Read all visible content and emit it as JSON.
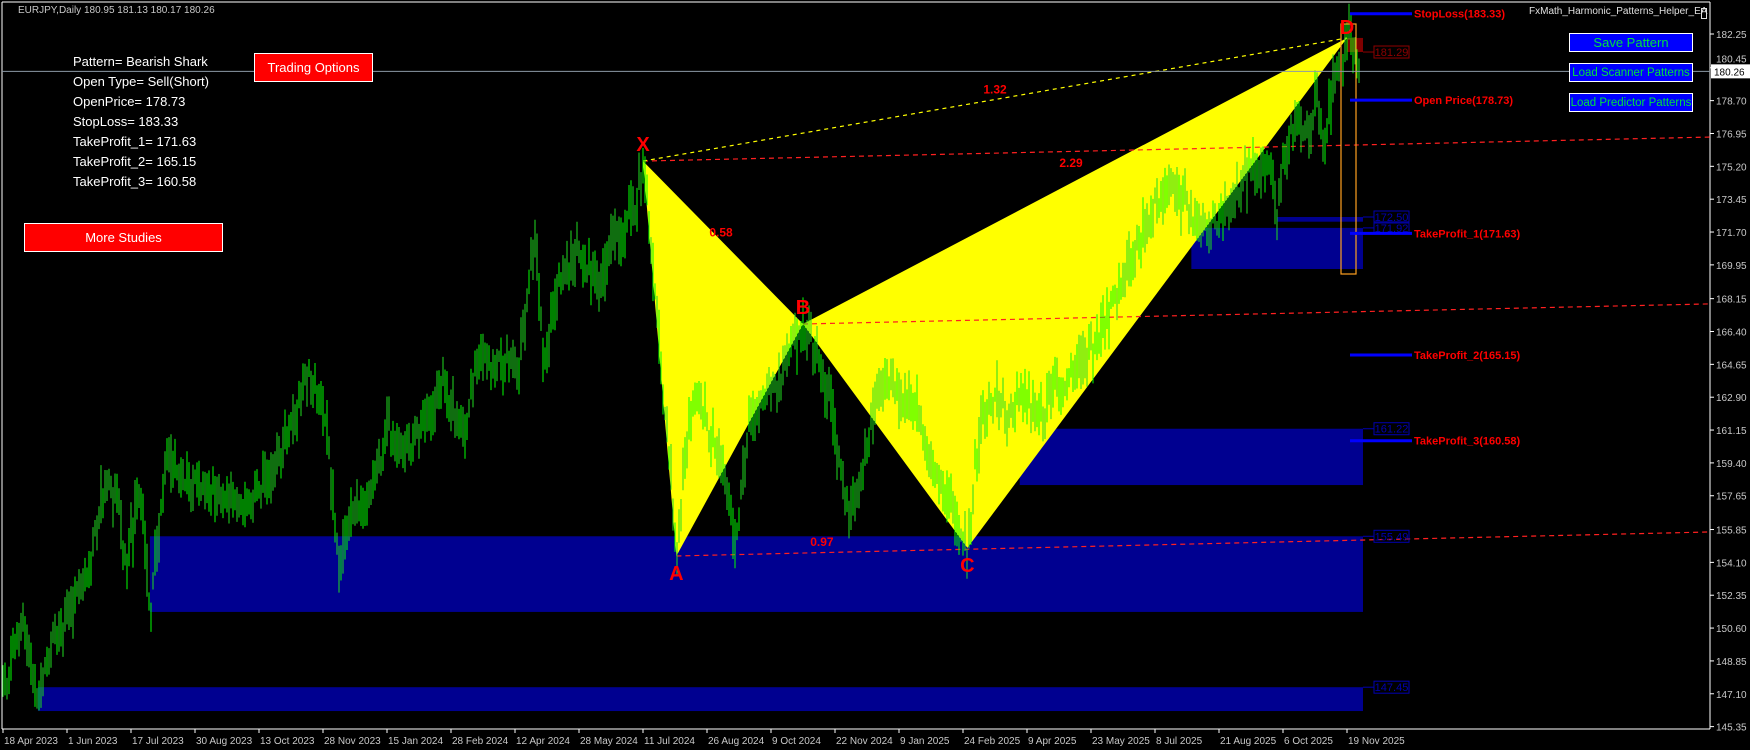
{
  "header": {
    "symbol_info": "EURJPY,Daily  180.95 181.13 180.17 180.26",
    "ea_name": "FxMath_Harmonic_Patterns_Helper_EA"
  },
  "info_panel": {
    "lines": [
      "Pattern= Bearish Shark",
      "Open Type= Sell(Short)",
      "OpenPrice= 178.73",
      "StopLoss= 183.33",
      "TakeProfit_1= 171.63",
      "TakeProfit_2= 165.15",
      "TakeProfit_3= 160.58"
    ]
  },
  "buttons": {
    "trading_options": "Trading Options",
    "more_studies": "More Studies",
    "save_pattern": "Save Pattern",
    "load_scanner": "Load Scanner Patterns",
    "load_predictor": "Load Predictor Patterns"
  },
  "chart_data": {
    "type": "ohlc",
    "symbol": "EURJPY",
    "timeframe": "Daily",
    "current_price": "180.26",
    "ylim": [
      145.35,
      182.25
    ],
    "y_ticks": [
      "182.25",
      "180.45",
      "178.70",
      "176.95",
      "175.20",
      "173.45",
      "171.70",
      "169.95",
      "168.15",
      "166.40",
      "164.65",
      "162.90",
      "161.15",
      "159.40",
      "157.65",
      "155.85",
      "154.10",
      "152.35",
      "150.60",
      "148.85",
      "147.10",
      "145.35"
    ],
    "x_ticks": [
      "18 Apr 2023",
      "1 Jun 2023",
      "17 Jul 2023",
      "30 Aug 2023",
      "13 Oct 2023",
      "28 Nov 2023",
      "15 Jan 2024",
      "28 Feb 2024",
      "12 Apr 2024",
      "28 May 2024",
      "11 Jul 2024",
      "26 Aug 2024",
      "9 Oct 2024",
      "22 Nov 2024",
      "9 Jan 2025",
      "24 Feb 2025",
      "9 Apr 2025",
      "23 May 2025",
      "8 Jul 2025",
      "21 Aug 2025",
      "6 Oct 2025",
      "19 Nov 2025"
    ],
    "series": [
      [
        "2023-04-18",
        147.4
      ],
      [
        "2023-04-24",
        148.5
      ],
      [
        "2023-05-02",
        151.6
      ],
      [
        "2023-05-12",
        146.2
      ],
      [
        "2023-05-21",
        149.9
      ],
      [
        "2023-05-29",
        151.0
      ],
      [
        "2023-06-17",
        153.8
      ],
      [
        "2023-06-27",
        157.9
      ],
      [
        "2023-07-06",
        157.7
      ],
      [
        "2023-07-13",
        153.8
      ],
      [
        "2023-07-23",
        157.9
      ],
      [
        "2023-07-30",
        151.5
      ],
      [
        "2023-08-10",
        159.2
      ],
      [
        "2023-08-31",
        158.4
      ],
      [
        "2023-10-02",
        156.9
      ],
      [
        "2023-10-19",
        158.6
      ],
      [
        "2023-11-06",
        161.6
      ],
      [
        "2023-11-16",
        164.2
      ],
      [
        "2023-11-30",
        161.8
      ],
      [
        "2023-12-10",
        153.2
      ],
      [
        "2023-12-18",
        156.6
      ],
      [
        "2024-01-02",
        157.5
      ],
      [
        "2024-01-15",
        161.3
      ],
      [
        "2024-01-29",
        159.9
      ],
      [
        "2024-02-09",
        161.4
      ],
      [
        "2024-02-23",
        163.5
      ],
      [
        "2024-03-08",
        160.7
      ],
      [
        "2024-03-18",
        165.0
      ],
      [
        "2024-04-01",
        164.5
      ],
      [
        "2024-04-15",
        164.8
      ],
      [
        "2024-04-27",
        171.5
      ],
      [
        "2024-05-03",
        164.5
      ],
      [
        "2024-05-14",
        169.3
      ],
      [
        "2024-05-28",
        170.6
      ],
      [
        "2024-06-11",
        168.3
      ],
      [
        "2024-06-21",
        171.5
      ],
      [
        "2024-07-05",
        172.9
      ],
      [
        "2024-07-11",
        175.48
      ],
      [
        "2024-07-16",
        171.6
      ],
      [
        "2024-07-23",
        165.2
      ],
      [
        "2024-07-30",
        159.9
      ],
      [
        "2024-08-04",
        154.44
      ],
      [
        "2024-08-13",
        161.7
      ],
      [
        "2024-08-20",
        163.4
      ],
      [
        "2024-08-27",
        160.8
      ],
      [
        "2024-09-03",
        159.9
      ],
      [
        "2024-09-15",
        155.3
      ],
      [
        "2024-09-24",
        161.7
      ],
      [
        "2024-10-08",
        163.1
      ],
      [
        "2024-10-22",
        165.2
      ],
      [
        "2024-10-31",
        166.8
      ],
      [
        "2024-11-09",
        165.2
      ],
      [
        "2024-11-19",
        162.6
      ],
      [
        "2024-12-03",
        156.4
      ],
      [
        "2024-12-10",
        158.1
      ],
      [
        "2024-12-25",
        163.8
      ],
      [
        "2025-01-01",
        163.8
      ],
      [
        "2025-01-22",
        162.3
      ],
      [
        "2025-02-01",
        159.0
      ],
      [
        "2025-02-15",
        157.3
      ],
      [
        "2025-02-27",
        154.87
      ],
      [
        "2025-03-08",
        161.7
      ],
      [
        "2025-03-19",
        163.4
      ],
      [
        "2025-03-26",
        161.7
      ],
      [
        "2025-04-05",
        163.4
      ],
      [
        "2025-04-16",
        162.1
      ],
      [
        "2025-05-25",
        165.4
      ],
      [
        "2025-06-09",
        168.1
      ],
      [
        "2025-07-06",
        172.9
      ],
      [
        "2025-07-19",
        174.0
      ],
      [
        "2025-08-11",
        171.9
      ],
      [
        "2025-08-27",
        172.9
      ],
      [
        "2025-09-11",
        174.8
      ],
      [
        "2025-09-27",
        175.6
      ],
      [
        "2025-10-02",
        172.3
      ],
      [
        "2025-10-05",
        175.2
      ],
      [
        "2025-10-16",
        177.8
      ],
      [
        "2025-10-23",
        176.6
      ],
      [
        "2025-10-28",
        178.7
      ],
      [
        "2025-11-04",
        176.6
      ],
      [
        "2025-11-09",
        179.6
      ],
      [
        "2025-11-15",
        180.9
      ],
      [
        "2025-11-19",
        182.04
      ],
      [
        "2025-11-23",
        181.4
      ],
      [
        "2025-11-28",
        180.26
      ]
    ],
    "pattern": {
      "name": "Bearish Shark",
      "points": [
        {
          "label": "X",
          "date": "2024-07-11",
          "price": 175.48
        },
        {
          "label": "A",
          "date": "2024-08-04",
          "price": 154.44
        },
        {
          "label": "B",
          "date": "2024-10-31",
          "price": 166.8
        },
        {
          "label": "C",
          "date": "2025-02-27",
          "price": 154.87
        },
        {
          "label": "D",
          "date": "2025-11-19",
          "price": 182.04
        }
      ],
      "ratios": [
        {
          "value": "0.58",
          "from": "X",
          "to": "B"
        },
        {
          "value": "1.32",
          "from": "X",
          "to": "D"
        },
        {
          "value": "2.29",
          "from": "B",
          "to": "D"
        },
        {
          "value": "0.97",
          "from": "A",
          "to": "C"
        }
      ],
      "extension_lines": [
        {
          "from": "X",
          "end_price": 176.76
        },
        {
          "from": "B",
          "end_price": 167.87
        },
        {
          "from": "A",
          "end_price": 155.72
        }
      ]
    },
    "levels": [
      {
        "label": "StopLoss(183.33)",
        "price": 183.33
      },
      {
        "label": "Open Price(178.73)",
        "price": 178.73
      },
      {
        "label": "TakeProfit_1(171.63)",
        "price": 171.63
      },
      {
        "label": "TakeProfit_2(165.15)",
        "price": 165.15
      },
      {
        "label": "TakeProfit_3(160.58)",
        "price": 160.58
      }
    ],
    "zones": [
      {
        "label": "181.29",
        "top": 182.04,
        "bottom": 181.29,
        "start": "2025-11-19",
        "color": "#800000"
      },
      {
        "label": "172.50",
        "top": 172.5,
        "bottom": 172.25,
        "start": "2025-10-02",
        "color": "#000090"
      },
      {
        "label": "171.92",
        "top": 171.92,
        "bottom": 169.73,
        "start": "2025-08-02",
        "color": "#000090"
      },
      {
        "label": "161.22",
        "top": 161.22,
        "bottom": 158.22,
        "start": "2025-04-04",
        "color": "#000090"
      },
      {
        "label": "155.49",
        "top": 155.49,
        "bottom": 151.46,
        "start": "2023-07-30",
        "color": "#000090"
      },
      {
        "label": "147.45",
        "top": 147.45,
        "bottom": 146.18,
        "start": "2023-05-12",
        "color": "#000090"
      }
    ],
    "colors": {
      "bars": "#00ff00",
      "pattern_fill": "#ffff00",
      "labels": "#ff0000",
      "level_lines": "#0000ff",
      "prz_box": "#ffa020"
    }
  }
}
